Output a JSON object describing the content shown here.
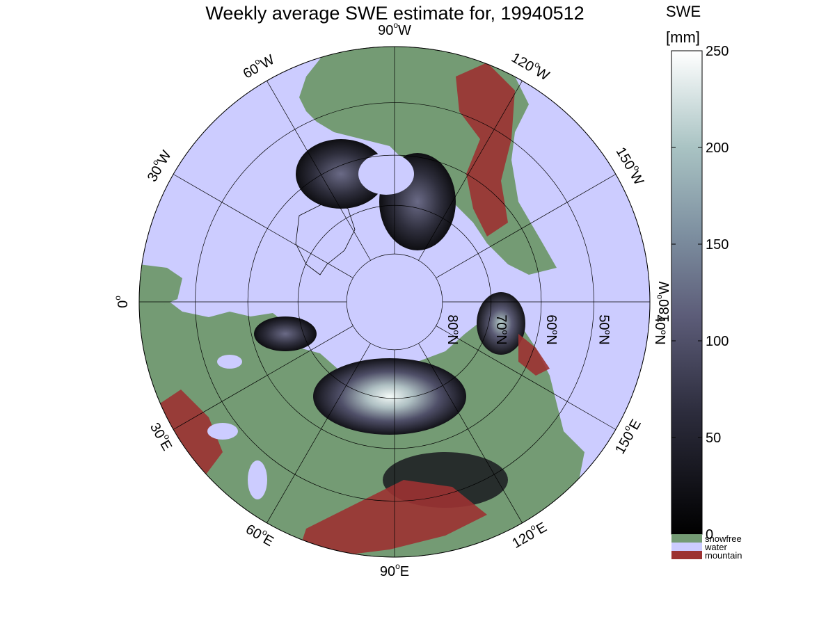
{
  "title": "Weekly average SWE estimate for, 19940512",
  "colors": {
    "water": "#ccccff",
    "snowfree": "#749b74",
    "mountain": "#9c3232",
    "grid": "#000000"
  },
  "chart_data": {
    "type": "heatmap",
    "projection": "north-polar stereographic",
    "title": "Weekly average SWE estimate for, 19940512",
    "date": "19940512",
    "variable": "SWE",
    "units": "[mm]",
    "latitude_circles": [
      40,
      50,
      60,
      70,
      80
    ],
    "latitude_labels": [
      "40",
      "50",
      "60",
      "70",
      "80"
    ],
    "longitude_lines": [
      0,
      30,
      60,
      90,
      120,
      150,
      180,
      -150,
      -120,
      -90,
      -60,
      -30
    ],
    "longitude_labels": [
      {
        "deg": "0",
        "hemi": ""
      },
      {
        "deg": "30",
        "hemi": "E"
      },
      {
        "deg": "60",
        "hemi": "E"
      },
      {
        "deg": "90",
        "hemi": "E"
      },
      {
        "deg": "120",
        "hemi": "E"
      },
      {
        "deg": "150",
        "hemi": "E"
      },
      {
        "deg": "180",
        "hemi": "W"
      },
      {
        "deg": "150",
        "hemi": "W"
      },
      {
        "deg": "120",
        "hemi": "W"
      },
      {
        "deg": "90",
        "hemi": "W"
      },
      {
        "deg": "60",
        "hemi": "W"
      },
      {
        "deg": "30",
        "hemi": "W"
      }
    ],
    "colorbar": {
      "label_line1": "SWE",
      "label_line2": "[mm]",
      "range": [
        0,
        250
      ],
      "ticks": [
        0,
        50,
        100,
        150,
        200,
        250
      ],
      "tick_labels": [
        "0",
        "50",
        "100",
        "150",
        "200",
        "250"
      ],
      "categories": [
        {
          "name": "snowfree",
          "color": "#749b74"
        },
        {
          "name": "water",
          "color": "#ccccff"
        },
        {
          "name": "mountain",
          "color": "#9c3232"
        }
      ]
    }
  }
}
